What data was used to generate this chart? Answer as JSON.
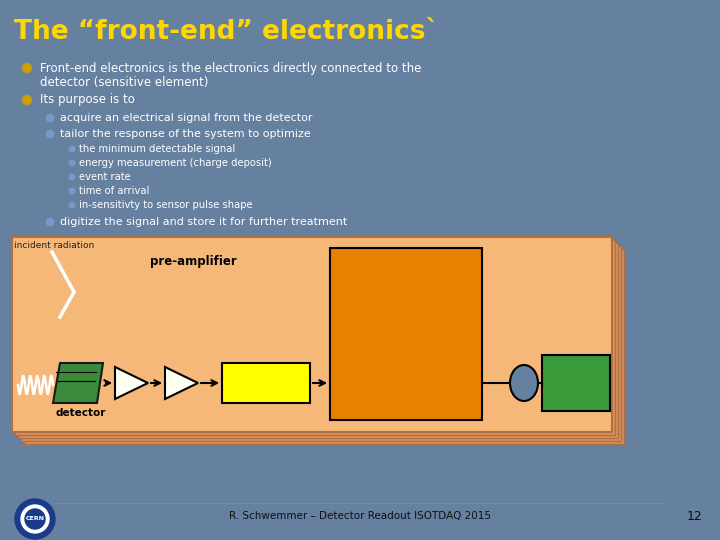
{
  "title": "The “front-end” electronics`",
  "title_color": "#FFD700",
  "bg_color": "#6680a0",
  "bullet1_line1": "Front-end electronics is the electronics directly connected to the",
  "bullet1_line2": "detector (sensitive element)",
  "bullet2": "Its purpose is to",
  "sub1": "acquire an electrical signal from the detector",
  "sub2": "tailor the response of the system to optimize",
  "subsub1": "the minimum detectable signal",
  "subsub2": "energy measurement (charge deposit)",
  "subsub3": "event rate",
  "subsub4": "time of arrival",
  "subsub5": "in-sensitivty to sensor pulse shape",
  "sub3": "digitize the signal and store it for further treatment",
  "footer": "R. Schwemmer – Detector Readout ISOTDAQ 2015",
  "page_num": "12",
  "diagram_bg": "#F5B878",
  "shaping_color": "#FFFF00",
  "digitization_color": "#E88000",
  "daq_color": "#3A9A3A",
  "detector_color": "#3A8A3A",
  "preamp_color": "#FFFFF0",
  "bullet_gold": "#C8A000",
  "bullet_blue": "#7799CC"
}
